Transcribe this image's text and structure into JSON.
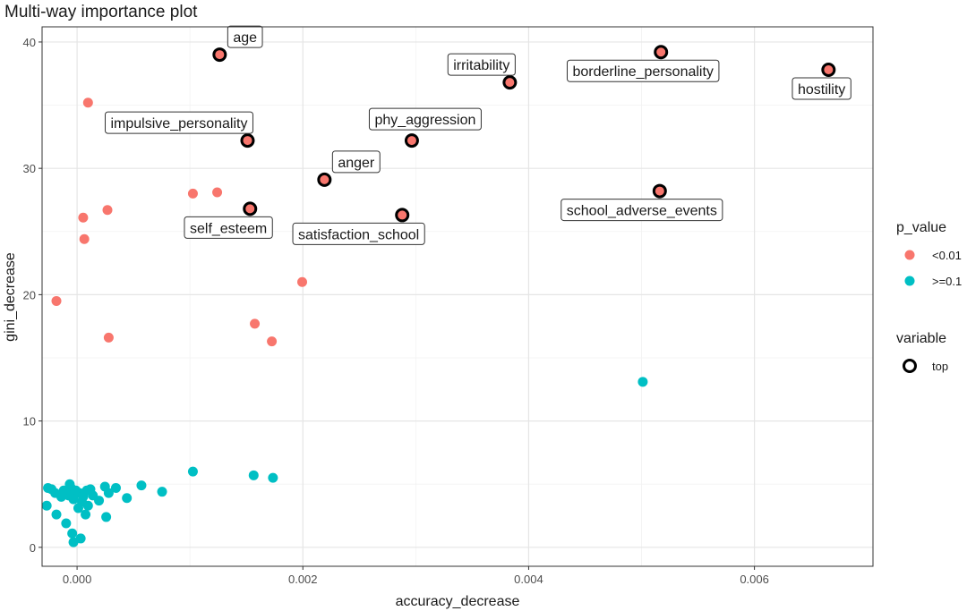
{
  "chart_data": {
    "type": "scatter",
    "title": "Multi-way importance plot",
    "xlabel": "accuracy_decrease",
    "ylabel": "gini_decrease",
    "xlim": [
      -0.00031,
      0.00705
    ],
    "ylim": [
      -1.5,
      41.2
    ],
    "x_ticks": [
      0.0,
      0.002,
      0.004,
      0.006
    ],
    "x_tick_labels": [
      "0.000",
      "0.002",
      "0.004",
      "0.006"
    ],
    "y_ticks": [
      0,
      10,
      20,
      30,
      40
    ],
    "y_tick_labels": [
      "0",
      "10",
      "20",
      "30",
      "40"
    ],
    "grid": true,
    "legend": {
      "placement": "right",
      "color_title": "p_value",
      "color_entries": [
        {
          "label": "<0.01",
          "color": "#F8766D"
        },
        {
          "label": ">=0.1",
          "color": "#00BFC4"
        }
      ],
      "shape_title": "variable",
      "shape_entries": [
        {
          "label": "top"
        }
      ]
    },
    "series": [
      {
        "name": "<0.01",
        "color": "#F8766D",
        "points": [
          {
            "x": 0.001263,
            "y": 39.0,
            "label": "age",
            "top": true
          },
          {
            "x": 0.003833,
            "y": 36.8,
            "label": "irritability",
            "top": true
          },
          {
            "x": 0.005172,
            "y": 39.2,
            "label": "borderline_personality",
            "top": true
          },
          {
            "x": 0.006656,
            "y": 37.8,
            "label": "hostility",
            "top": true
          },
          {
            "x": 0.00151,
            "y": 32.2,
            "label": "impulsive_personality",
            "top": true
          },
          {
            "x": 0.002965,
            "y": 32.2,
            "label": "phy_aggression",
            "top": true
          },
          {
            "x": 0.002191,
            "y": 29.1,
            "label": "anger",
            "top": true
          },
          {
            "x": 0.001532,
            "y": 26.8,
            "label": "self_esteem",
            "top": true
          },
          {
            "x": 0.00288,
            "y": 26.3,
            "label": "satisfaction_school",
            "top": true
          },
          {
            "x": 0.005161,
            "y": 28.2,
            "label": "school_adverse_events",
            "top": true
          },
          {
            "x": 9.7e-05,
            "y": 35.2
          },
          {
            "x": 0.001026,
            "y": 28.0
          },
          {
            "x": 0.001241,
            "y": 28.1
          },
          {
            "x": 0.000269,
            "y": 26.7
          },
          {
            "x": 5.4e-05,
            "y": 26.1
          },
          {
            "x": 6.4e-05,
            "y": 24.4
          },
          {
            "x": -0.000183,
            "y": 19.5
          },
          {
            "x": 0.001994,
            "y": 21.0
          },
          {
            "x": 0.001574,
            "y": 17.7
          },
          {
            "x": 0.001725,
            "y": 16.3
          },
          {
            "x": 0.00028,
            "y": 16.6
          }
        ]
      },
      {
        "name": ">=0.1",
        "color": "#00BFC4",
        "points": [
          {
            "x": 0.005011,
            "y": 13.1
          },
          {
            "x": 0.001026,
            "y": 6.0
          },
          {
            "x": 0.001564,
            "y": 5.7
          },
          {
            "x": 0.001735,
            "y": 5.5
          },
          {
            "x": 0.000753,
            "y": 4.4
          },
          {
            "x": 0.00057,
            "y": 4.9
          },
          {
            "x": 0.000441,
            "y": 3.9
          },
          {
            "x": 0.000344,
            "y": 4.7
          },
          {
            "x": 0.00028,
            "y": 4.3
          },
          {
            "x": 0.000258,
            "y": 2.4
          },
          {
            "x": 0.000247,
            "y": 4.8
          },
          {
            "x": 0.000194,
            "y": 3.7
          },
          {
            "x": 0.00014,
            "y": 4.1
          },
          {
            "x": 0.000118,
            "y": 4.6
          },
          {
            "x": 9.7e-05,
            "y": 3.3
          },
          {
            "x": 8.6e-05,
            "y": 4.5
          },
          {
            "x": 7.5e-05,
            "y": 2.6
          },
          {
            "x": 5.4e-05,
            "y": 4.0
          },
          {
            "x": 4.3e-05,
            "y": 3.6
          },
          {
            "x": 3.2e-05,
            "y": 0.7
          },
          {
            "x": 2.2e-05,
            "y": 4.3
          },
          {
            "x": 1.1e-05,
            "y": 3.1
          },
          {
            "x": -1.1e-05,
            "y": 4.5
          },
          {
            "x": -2.2e-05,
            "y": 4.2
          },
          {
            "x": -3.2e-05,
            "y": 3.8
          },
          {
            "x": -3.2e-05,
            "y": 0.4
          },
          {
            "x": -4.3e-05,
            "y": 1.1
          },
          {
            "x": -5.4e-05,
            "y": 4.7
          },
          {
            "x": -6.5e-05,
            "y": 5.0
          },
          {
            "x": -7.5e-05,
            "y": 4.1
          },
          {
            "x": -9.7e-05,
            "y": 1.9
          },
          {
            "x": -0.000118,
            "y": 4.5
          },
          {
            "x": -0.00014,
            "y": 4.0
          },
          {
            "x": -0.000183,
            "y": 2.6
          },
          {
            "x": -0.000194,
            "y": 4.3
          },
          {
            "x": -0.000226,
            "y": 4.6
          },
          {
            "x": -0.000258,
            "y": 4.7
          },
          {
            "x": -0.000269,
            "y": 3.3
          }
        ]
      }
    ]
  }
}
